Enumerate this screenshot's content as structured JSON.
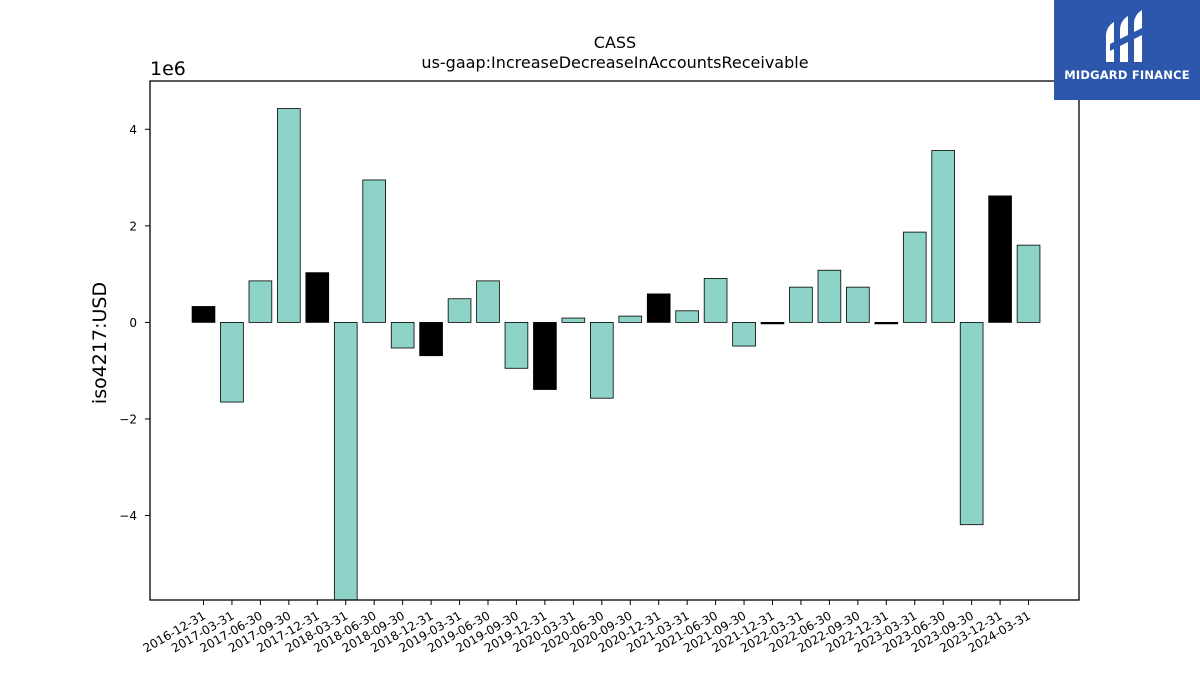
{
  "brand": {
    "name": "MIDGARD FINANCE",
    "background": "#2c57ad"
  },
  "chart_data": {
    "type": "bar",
    "title": "CASS",
    "subtitle": "us-gaap:IncreaseDecreaseInAccountsReceivable",
    "ylabel": "iso4217:USD",
    "xlabel": "",
    "y_multiplier_label": "1e6",
    "ylim": [
      -5.75,
      5.0
    ],
    "yticks": [
      -4,
      -2,
      0,
      2,
      4
    ],
    "ytick_labels": [
      "−4",
      "−2",
      "0",
      "2",
      "4"
    ],
    "grid": false,
    "colors": {
      "default": "#8dd3c7",
      "highlight": "#000000",
      "edge": "#000000"
    },
    "categories": [
      "2016-12-31",
      "2017-03-31",
      "2017-06-30",
      "2017-09-30",
      "2017-12-31",
      "2018-03-31",
      "2018-06-30",
      "2018-09-30",
      "2018-12-31",
      "2019-03-31",
      "2019-06-30",
      "2019-09-30",
      "2019-12-31",
      "2020-03-31",
      "2020-06-30",
      "2020-09-30",
      "2020-12-31",
      "2021-03-31",
      "2021-06-30",
      "2021-09-30",
      "2021-12-31",
      "2022-03-31",
      "2022-06-30",
      "2022-09-30",
      "2022-12-31",
      "2023-03-31",
      "2023-06-30",
      "2023-09-30",
      "2023-12-31",
      "2024-03-31"
    ],
    "values": [
      0.33,
      -1.65,
      0.86,
      4.43,
      1.03,
      -5.75,
      2.95,
      -0.53,
      -0.69,
      0.49,
      0.86,
      -0.95,
      -1.39,
      0.09,
      -1.57,
      0.13,
      0.59,
      0.24,
      0.91,
      -0.49,
      -0.03,
      0.73,
      1.08,
      0.73,
      -0.03,
      1.87,
      3.56,
      -4.19,
      2.62,
      1.6
    ],
    "highlight": [
      true,
      false,
      false,
      false,
      true,
      false,
      false,
      false,
      true,
      false,
      false,
      false,
      true,
      false,
      false,
      false,
      true,
      false,
      false,
      false,
      true,
      false,
      false,
      false,
      true,
      false,
      false,
      false,
      true,
      false
    ]
  }
}
